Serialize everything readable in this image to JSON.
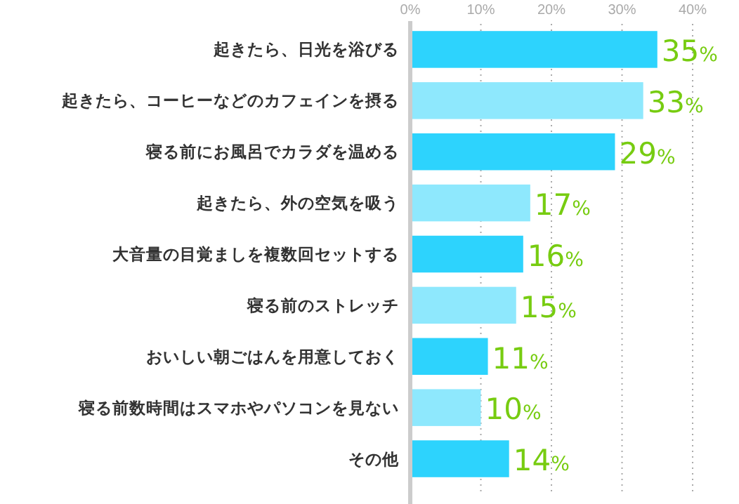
{
  "chart_data": {
    "type": "bar",
    "orientation": "horizontal",
    "categories": [
      "起きたら、日光を浴びる",
      "起きたら、コーヒーなどのカフェインを摂る",
      "寝る前にお風呂でカラダを温める",
      "起きたら、外の空気を吸う",
      "大音量の目覚ましを複数回セットする",
      "寝る前のストレッチ",
      "おいしい朝ごはんを用意しておく",
      "寝る前数時間はスマホやパソコンを見ない",
      "その他"
    ],
    "values": [
      35,
      33,
      29,
      17,
      16,
      15,
      11,
      10,
      14
    ],
    "colors": [
      "#2dd3fd",
      "#8ee8fd",
      "#2dd3fd",
      "#8ee8fd",
      "#2dd3fd",
      "#8ee8fd",
      "#2dd3fd",
      "#8ee8fd",
      "#2dd3fd"
    ],
    "value_labels": [
      "35%",
      "33%",
      "29%",
      "17%",
      "16%",
      "15%",
      "11%",
      "10%",
      "14%"
    ],
    "xlim": [
      0,
      40
    ],
    "xticks": [
      {
        "value": 0,
        "label": "0%"
      },
      {
        "value": 10,
        "label": "10%"
      },
      {
        "value": 20,
        "label": "20%"
      },
      {
        "value": 30,
        "label": "30%"
      },
      {
        "value": 40,
        "label": "40%"
      }
    ],
    "grid": "x"
  }
}
